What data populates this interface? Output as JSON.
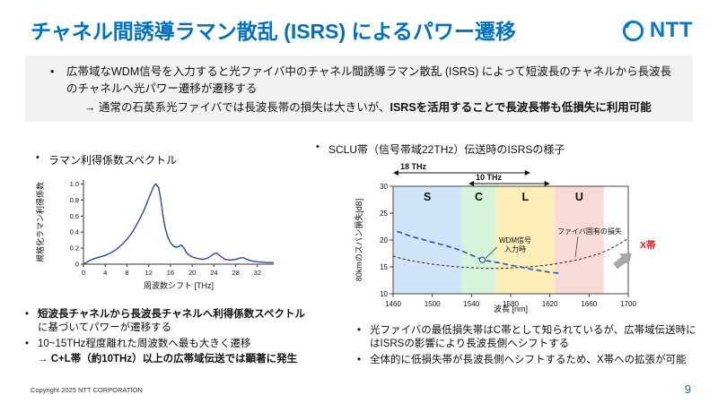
{
  "slide": {
    "title": "チャネル間誘導ラマン散乱 (ISRS) によるパワー遷移",
    "logo_text": "NTT",
    "page_number": "9",
    "copyright": "Copyright 2025 NTT CORPORATION"
  },
  "ui": {
    "bullet": "•"
  },
  "summary": {
    "bullet": "広帯域なWDM信号を入力すると光ファイバ中のチャネル間誘導ラマン散乱 (ISRS) によって短波長のチャネルから長波長のチャネルへ光パワー遷移が遷移する",
    "arrow_prefix": "→ 通常の石英系光ファイバでは長波長帯の損失は大きいが、",
    "arrow_bold": "ISRSを活用することで長波長帯も低損失に利用可能"
  },
  "left_panel": {
    "heading": "ラマン利得係数スペクトル",
    "bullet1_bold": "短波長チャネルから長波長チャネルへ利得係数スペクトル",
    "bullet1_rest": "に基づいてパワーが遷移する",
    "bullet2": "10~15THz程度離れた周波数へ最も大きく遷移",
    "bullet3_bold": "→ C+L帯（約10THz）以上の広帯域伝送では顕著に発生"
  },
  "right_panel": {
    "heading": "SCLU帯（信号帯域22THz）伝送時のISRSの様子",
    "bullet1": "光ファイバの最低損失帯はC帯として知られているが、広帯域伝送時にはISRSの影響により長波長側へシフトする",
    "bullet2": "全体的に低損失帯が長波長側へシフトするため、X帯への拡張が可能"
  },
  "chart_data": [
    {
      "id": "raman-gain",
      "type": "line",
      "title": "ラマン利得係数スペクトル",
      "xlabel": "周波数シフト [THz]",
      "ylabel": "規格化ラマン利得係数",
      "xlim": [
        0,
        35
      ],
      "ylim": [
        0,
        1.05
      ],
      "xticks": [
        0,
        4,
        8,
        12,
        16,
        20,
        24,
        28,
        32
      ],
      "yticks": [
        0,
        0.2,
        0.4,
        0.6,
        0.8,
        1.0
      ],
      "line_color": "#3146a0",
      "x": [
        0,
        1,
        2,
        2.5,
        3,
        4,
        5,
        6,
        7,
        8,
        9,
        10,
        11,
        12,
        12.5,
        13,
        13.3,
        13.8,
        14.2,
        14.6,
        15,
        15.5,
        16,
        16.5,
        17,
        17.5,
        18,
        18.5,
        19,
        19.5,
        20,
        21,
        22,
        23,
        24,
        24.5,
        25,
        26,
        27,
        28,
        29,
        29.5,
        30,
        31,
        32,
        33,
        34,
        35
      ],
      "y": [
        0,
        0.04,
        0.07,
        0.08,
        0.09,
        0.11,
        0.14,
        0.18,
        0.24,
        0.31,
        0.4,
        0.52,
        0.65,
        0.82,
        0.9,
        0.98,
        1.0,
        0.96,
        0.82,
        0.62,
        0.46,
        0.34,
        0.27,
        0.23,
        0.21,
        0.22,
        0.24,
        0.2,
        0.14,
        0.11,
        0.09,
        0.07,
        0.06,
        0.08,
        0.13,
        0.14,
        0.11,
        0.06,
        0.05,
        0.06,
        0.08,
        0.08,
        0.06,
        0.04,
        0.03,
        0.025,
        0.02,
        0.02
      ]
    },
    {
      "id": "span-loss",
      "type": "line",
      "title": "SCLU帯（信号帯域22THz）伝送時のISRSの様子",
      "xlabel": "波長 [nm]",
      "ylabel": "80kmのスパン損失[dB]",
      "xlim": [
        1460,
        1700
      ],
      "ylim": [
        10,
        30
      ],
      "xticks": [
        1460,
        1500,
        1540,
        1580,
        1620,
        1660,
        1700
      ],
      "yticks": [
        10,
        15,
        20,
        25,
        30
      ],
      "bands": [
        {
          "label": "S",
          "from": 1460,
          "to": 1530,
          "color": "#cfe5f7"
        },
        {
          "label": "C",
          "from": 1530,
          "to": 1565,
          "color": "#d6f3da"
        },
        {
          "label": "L",
          "from": 1565,
          "to": 1625,
          "color": "#fdeeb9"
        },
        {
          "label": "U",
          "from": 1625,
          "to": 1675,
          "color": "#f8dad6"
        }
      ],
      "series": [
        {
          "id": "fiber-intrinsic-loss",
          "name": "ファイバ固有の損失",
          "color": "#222222",
          "dash": "3 2.5",
          "width": 1,
          "x": [
            1460,
            1470,
            1480,
            1490,
            1500,
            1510,
            1520,
            1530,
            1540,
            1550,
            1560,
            1570,
            1580,
            1590,
            1600,
            1610,
            1620,
            1630,
            1640,
            1650,
            1660,
            1670,
            1680,
            1690,
            1700
          ],
          "y": [
            17.0,
            16.5,
            16.1,
            15.8,
            15.5,
            15.3,
            15.1,
            14.95,
            14.85,
            14.75,
            14.7,
            14.72,
            14.8,
            14.9,
            15.0,
            15.2,
            15.4,
            15.7,
            16.0,
            16.4,
            16.9,
            17.4,
            18.2,
            19.2,
            20.3
          ]
        },
        {
          "id": "wdm-input-loss",
          "name": "WDM信号入力時",
          "color": "#2456a8",
          "dash": "6 3.5",
          "width": 1.6,
          "x": [
            1464,
            1480,
            1500,
            1515,
            1530,
            1540,
            1551,
            1560,
            1570,
            1580,
            1590,
            1600,
            1610,
            1620,
            1630
          ],
          "y": [
            21.6,
            20.6,
            19.6,
            18.9,
            18.0,
            17.2,
            16.3,
            16.0,
            15.7,
            15.3,
            15.0,
            14.6,
            14.3,
            14.0,
            13.8
          ]
        }
      ],
      "marker": {
        "x": 1551,
        "y": 16.3
      },
      "dimension_arrows": [
        {
          "label": "18 THz",
          "from": 1460,
          "to": 1600
        },
        {
          "label": "10 THz",
          "from": 1537,
          "to": 1620
        }
      ],
      "annotations": {
        "wdm_line1": "WDM信号",
        "wdm_line2": "入力時",
        "fiber_label": "ファイバ固有の損失",
        "x_band_label": "X帯",
        "x_band_color": "#e02020"
      }
    }
  ]
}
